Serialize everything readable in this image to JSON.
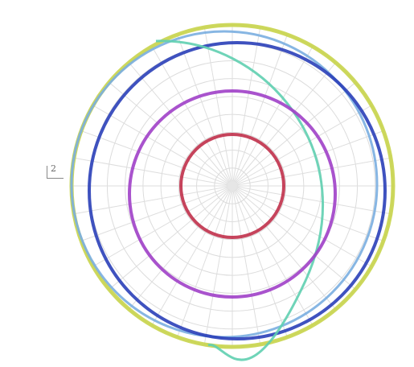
{
  "chart_data": {
    "type": "polar",
    "title": "",
    "grid": true,
    "radial_gridlines": 9,
    "angular_spokes": 36,
    "annotation": "2",
    "series": [
      {
        "color": "#c8d44a",
        "shape": "circle",
        "r": 1.0
      },
      {
        "color": "#7aaee0",
        "shape": "circle",
        "r": 0.95,
        "x_offset": -0.05,
        "y_offset": 0.01
      },
      {
        "color": "#2a3fb8",
        "shape": "circle",
        "r": 0.92,
        "x_offset": 0.03,
        "y_offset": -0.03
      },
      {
        "color": "#5fcfb0",
        "shape": "arc"
      },
      {
        "color": "#a040c8",
        "shape": "circle",
        "r": 0.64,
        "y_offset": -0.05
      },
      {
        "color": "#c0304a",
        "shape": "circle",
        "r": 0.32
      }
    ]
  }
}
